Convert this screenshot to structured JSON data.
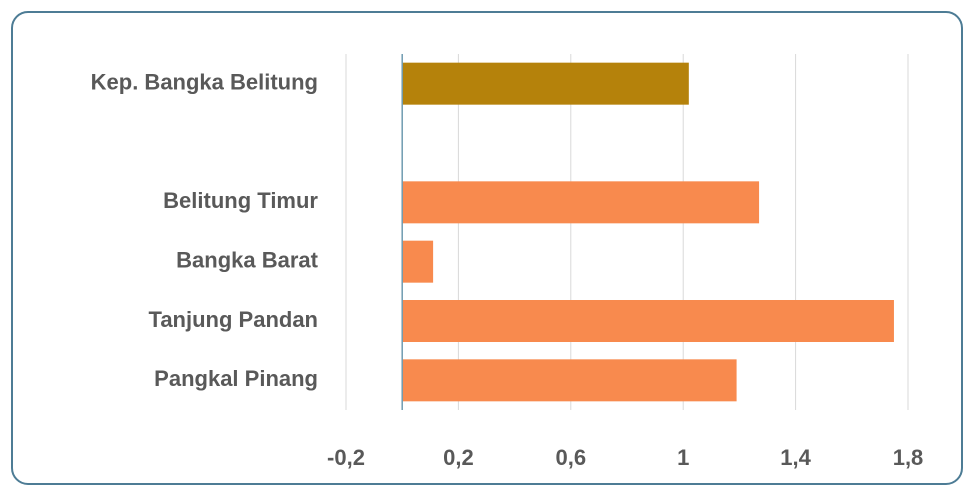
{
  "chart_data": {
    "type": "bar",
    "orientation": "horizontal",
    "categories": [
      "Kep. Bangka Belitung",
      null,
      "Belitung Timur",
      "Bangka Barat",
      "Tanjung Pandan",
      "Pangkal Pinang"
    ],
    "values": [
      1.02,
      null,
      1.27,
      0.11,
      1.75,
      1.19
    ],
    "colors": [
      "#b5820b",
      null,
      "#f88a4e",
      "#f88a4e",
      "#f88a4e",
      "#f88a4e"
    ],
    "xlim": [
      -0.2,
      1.8
    ],
    "xticks": [
      {
        "value": -0.2,
        "label": "-0,2"
      },
      {
        "value": 0.2,
        "label": "0,2"
      },
      {
        "value": 0.6,
        "label": "0,6"
      },
      1,
      {
        "value": 1.4,
        "label": "1,4"
      },
      {
        "value": 1.8,
        "label": "1,8"
      }
    ],
    "grid": true
  }
}
